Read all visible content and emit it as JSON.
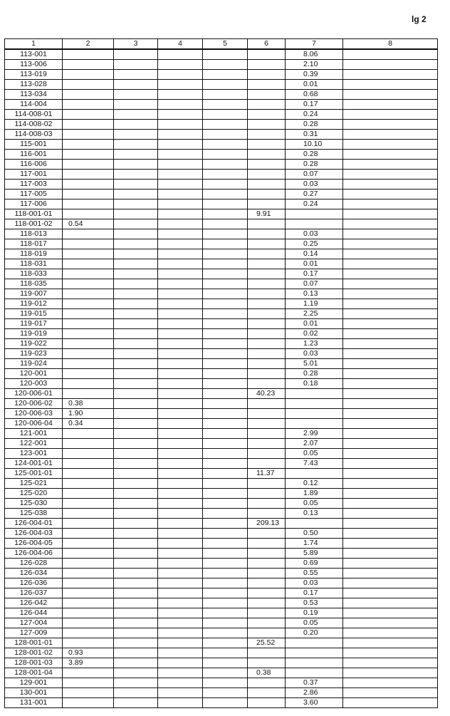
{
  "page_label": "lg 2",
  "table": {
    "headers": [
      "1",
      "2",
      "3",
      "4",
      "5",
      "6",
      "7",
      "8"
    ],
    "rows": [
      [
        "113-001",
        "",
        "",
        "",
        "",
        "",
        "8.06",
        ""
      ],
      [
        "113-006",
        "",
        "",
        "",
        "",
        "",
        "2.10",
        ""
      ],
      [
        "113-019",
        "",
        "",
        "",
        "",
        "",
        "0.39",
        ""
      ],
      [
        "113-028",
        "",
        "",
        "",
        "",
        "",
        "0.01",
        ""
      ],
      [
        "113-034",
        "",
        "",
        "",
        "",
        "",
        "0.68",
        ""
      ],
      [
        "114-004",
        "",
        "",
        "",
        "",
        "",
        "0.17",
        ""
      ],
      [
        "114-008-01",
        "",
        "",
        "",
        "",
        "",
        "0.24",
        ""
      ],
      [
        "114-008-02",
        "",
        "",
        "",
        "",
        "",
        "0.28",
        ""
      ],
      [
        "114-008-03",
        "",
        "",
        "",
        "",
        "",
        "0.31",
        ""
      ],
      [
        "115-001",
        "",
        "",
        "",
        "",
        "",
        "10.10",
        ""
      ],
      [
        "116-001",
        "",
        "",
        "",
        "",
        "",
        "0.28",
        ""
      ],
      [
        "116-006",
        "",
        "",
        "",
        "",
        "",
        "0.28",
        ""
      ],
      [
        "117-001",
        "",
        "",
        "",
        "",
        "",
        "0.07",
        ""
      ],
      [
        "117-003",
        "",
        "",
        "",
        "",
        "",
        "0.03",
        ""
      ],
      [
        "117-005",
        "",
        "",
        "",
        "",
        "",
        "0.27",
        ""
      ],
      [
        "117-006",
        "",
        "",
        "",
        "",
        "",
        "0.24",
        ""
      ],
      [
        "118-001-01",
        "",
        "",
        "",
        "",
        "9.91",
        "",
        ""
      ],
      [
        "118-001-02",
        "0.54",
        "",
        "",
        "",
        "",
        "",
        ""
      ],
      [
        "118-013",
        "",
        "",
        "",
        "",
        "",
        "0.03",
        ""
      ],
      [
        "118-017",
        "",
        "",
        "",
        "",
        "",
        "0.25",
        ""
      ],
      [
        "118-019",
        "",
        "",
        "",
        "",
        "",
        "0.14",
        ""
      ],
      [
        "118-031",
        "",
        "",
        "",
        "",
        "",
        "0.01",
        ""
      ],
      [
        "118-033",
        "",
        "",
        "",
        "",
        "",
        "0.17",
        ""
      ],
      [
        "118-035",
        "",
        "",
        "",
        "",
        "",
        "0.07",
        ""
      ],
      [
        "119-007",
        "",
        "",
        "",
        "",
        "",
        "0.13",
        ""
      ],
      [
        "119-012",
        "",
        "",
        "",
        "",
        "",
        "1.19",
        ""
      ],
      [
        "119-015",
        "",
        "",
        "",
        "",
        "",
        "2.25",
        ""
      ],
      [
        "119-017",
        "",
        "",
        "",
        "",
        "",
        "0.01",
        ""
      ],
      [
        "119-019",
        "",
        "",
        "",
        "",
        "",
        "0.02",
        ""
      ],
      [
        "119-022",
        "",
        "",
        "",
        "",
        "",
        "1.23",
        ""
      ],
      [
        "119-023",
        "",
        "",
        "",
        "",
        "",
        "0.03",
        ""
      ],
      [
        "119-024",
        "",
        "",
        "",
        "",
        "",
        "5.01",
        ""
      ],
      [
        "120-001",
        "",
        "",
        "",
        "",
        "",
        "0.28",
        ""
      ],
      [
        "120-003",
        "",
        "",
        "",
        "",
        "",
        "0.18",
        ""
      ],
      [
        "120-006-01",
        "",
        "",
        "",
        "",
        "40.23",
        "",
        ""
      ],
      [
        "120-006-02",
        "0.38",
        "",
        "",
        "",
        "",
        "",
        ""
      ],
      [
        "120-006-03",
        "1.90",
        "",
        "",
        "",
        "",
        "",
        ""
      ],
      [
        "120-006-04",
        "0.34",
        "",
        "",
        "",
        "",
        "",
        ""
      ],
      [
        "121-001",
        "",
        "",
        "",
        "",
        "",
        "2.99",
        ""
      ],
      [
        "122-001",
        "",
        "",
        "",
        "",
        "",
        "2.07",
        ""
      ],
      [
        "123-001",
        "",
        "",
        "",
        "",
        "",
        "0.05",
        ""
      ],
      [
        "124-001-01",
        "",
        "",
        "",
        "",
        "",
        "7.43",
        ""
      ],
      [
        "125-001-01",
        "",
        "",
        "",
        "",
        "11.37",
        "",
        ""
      ],
      [
        "125-021",
        "",
        "",
        "",
        "",
        "",
        "0.12",
        ""
      ],
      [
        "125-020",
        "",
        "",
        "",
        "",
        "",
        "1.89",
        ""
      ],
      [
        "125-030",
        "",
        "",
        "",
        "",
        "",
        "0.05",
        ""
      ],
      [
        "125-038",
        "",
        "",
        "",
        "",
        "",
        "0.13",
        ""
      ],
      [
        "126-004-01",
        "",
        "",
        "",
        "",
        "209.13",
        "",
        ""
      ],
      [
        "126-004-03",
        "",
        "",
        "",
        "",
        "",
        "0.50",
        ""
      ],
      [
        "126-004-05",
        "",
        "",
        "",
        "",
        "",
        "1.74",
        ""
      ],
      [
        "126-004-06",
        "",
        "",
        "",
        "",
        "",
        "5.89",
        ""
      ],
      [
        "126-028",
        "",
        "",
        "",
        "",
        "",
        "0.69",
        ""
      ],
      [
        "126-034",
        "",
        "",
        "",
        "",
        "",
        "0.55",
        ""
      ],
      [
        "126-036",
        "",
        "",
        "",
        "",
        "",
        "0.03",
        ""
      ],
      [
        "126-037",
        "",
        "",
        "",
        "",
        "",
        "0.17",
        ""
      ],
      [
        "126-042",
        "",
        "",
        "",
        "",
        "",
        "0.53",
        ""
      ],
      [
        "126-044",
        "",
        "",
        "",
        "",
        "",
        "0.19",
        ""
      ],
      [
        "127-004",
        "",
        "",
        "",
        "",
        "",
        "0.05",
        ""
      ],
      [
        "127-009",
        "",
        "",
        "",
        "",
        "",
        "0.20",
        ""
      ],
      [
        "128-001-01",
        "",
        "",
        "",
        "",
        "25.52",
        "",
        ""
      ],
      [
        "128-001-02",
        "0.93",
        "",
        "",
        "",
        "",
        "",
        ""
      ],
      [
        "128-001-03",
        "3.89",
        "",
        "",
        "",
        "",
        "",
        ""
      ],
      [
        "128-001-04",
        "",
        "",
        "",
        "",
        "0.38",
        "",
        ""
      ],
      [
        "129-001",
        "",
        "",
        "",
        "",
        "",
        "0.37",
        ""
      ],
      [
        "130-001",
        "",
        "",
        "",
        "",
        "",
        "2.86",
        ""
      ],
      [
        "131-001",
        "",
        "",
        "",
        "",
        "",
        "3.60",
        ""
      ]
    ]
  }
}
